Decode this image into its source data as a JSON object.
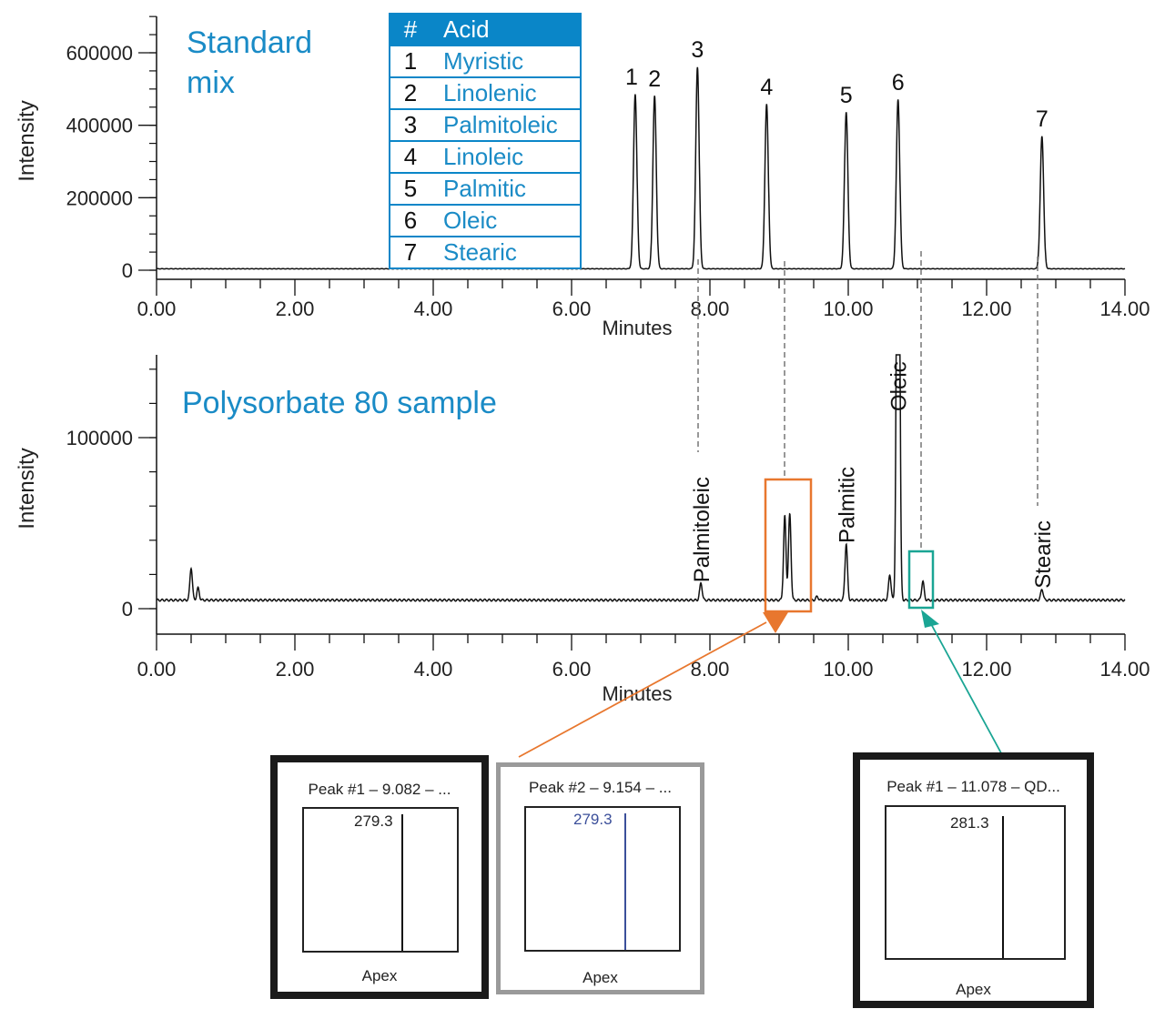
{
  "chart_data": [
    {
      "type": "line",
      "title": "Standard mix",
      "ylabel": "Intensity",
      "xlabel": "Minutes",
      "xlim": [
        0,
        14
      ],
      "ylim": [
        0,
        650000
      ],
      "xticks": [
        "0.00",
        "2.00",
        "4.00",
        "6.00",
        "8.00",
        "10.00",
        "12.00",
        "14.00"
      ],
      "yticks": [
        {
          "v": 0,
          "label": "0"
        },
        {
          "v": 200000,
          "label": "200000"
        },
        {
          "v": 400000,
          "label": "400000"
        },
        {
          "v": 600000,
          "label": "600000"
        }
      ],
      "baseline": 4000,
      "peaks": [
        {
          "label": "1",
          "rt": 6.92,
          "height": 482000
        },
        {
          "label": "2",
          "rt": 7.2,
          "height": 477000
        },
        {
          "label": "3",
          "rt": 7.82,
          "height": 557000
        },
        {
          "label": "4",
          "rt": 8.82,
          "height": 454000
        },
        {
          "label": "5",
          "rt": 9.97,
          "height": 432000
        },
        {
          "label": "6",
          "rt": 10.72,
          "height": 467000
        },
        {
          "label": "7",
          "rt": 12.8,
          "height": 366000
        }
      ],
      "legend_table": {
        "header": [
          "#",
          "Acid"
        ],
        "rows": [
          [
            "1",
            "Myristic"
          ],
          [
            "2",
            "Linolenic"
          ],
          [
            "3",
            "Palmitoleic"
          ],
          [
            "4",
            "Linoleic"
          ],
          [
            "5",
            "Palmitic"
          ],
          [
            "6",
            "Oleic"
          ],
          [
            "7",
            "Stearic"
          ]
        ]
      }
    },
    {
      "type": "line",
      "title": "Polysorbate 80 sample",
      "ylabel": "Intensity",
      "xlabel": "Minutes",
      "xlim": [
        0,
        14
      ],
      "ylim": [
        -15000,
        150000
      ],
      "xticks": [
        "0.00",
        "2.00",
        "4.00",
        "6.00",
        "8.00",
        "10.00",
        "12.00",
        "14.00"
      ],
      "yticks": [
        {
          "v": 0,
          "label": "0"
        },
        {
          "v": 100000,
          "label": "100000"
        }
      ],
      "baseline": 5000,
      "peaks": [
        {
          "label": "",
          "rt": 0.5,
          "height": 19000
        },
        {
          "label": "",
          "rt": 0.6,
          "height": 7000
        },
        {
          "label": "Palmitoleic",
          "rt": 7.87,
          "height": 10000
        },
        {
          "label": "",
          "rt": 9.082,
          "height": 49000
        },
        {
          "label": "",
          "rt": 9.154,
          "height": 50000
        },
        {
          "label": "",
          "rt": 9.55,
          "height": 2000
        },
        {
          "label": "Palmitic",
          "rt": 9.97,
          "height": 33000
        },
        {
          "label": "",
          "rt": 10.6,
          "height": 15000
        },
        {
          "label": "Oleic",
          "rt": 10.72,
          "height": 400000
        },
        {
          "label": "",
          "rt": 11.078,
          "height": 11000
        },
        {
          "label": "Stearic",
          "rt": 12.8,
          "height": 6500
        }
      ]
    }
  ],
  "insets": [
    {
      "title": "Peak #1 – 9.082 – ...",
      "mz": "279.3",
      "footer": "Apex"
    },
    {
      "title": "Peak #2 – 9.154 – ...",
      "mz": "279.3",
      "footer": "Apex"
    },
    {
      "title": "Peak #1 – 11.078 – QD...",
      "mz": "281.3",
      "footer": "Apex"
    }
  ],
  "colors": {
    "title": "#1a8bc6",
    "orange": "#e8772e",
    "teal": "#1aa594",
    "trace": "#111111",
    "mz_blue": "#3b4f9a"
  }
}
